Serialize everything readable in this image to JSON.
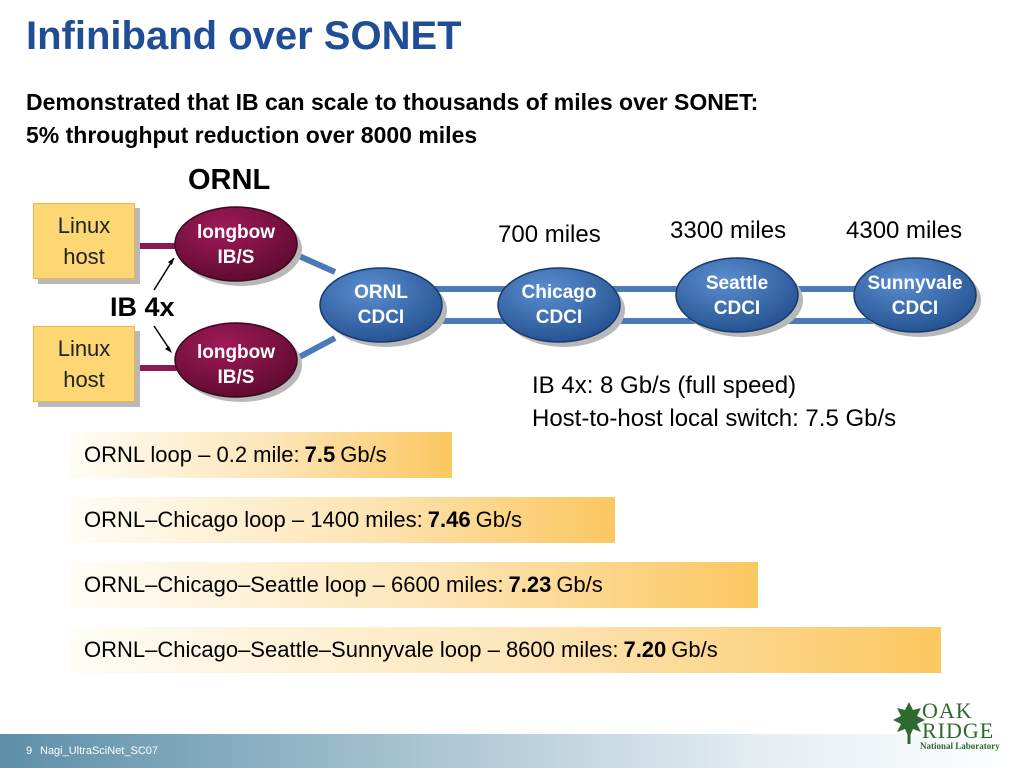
{
  "slide": {
    "title": "Infiniband over SONET",
    "subtitle_line1": "Demonstrated that IB can scale to thousands of miles over SONET:",
    "subtitle_line2": "5% throughput reduction over 8000 miles"
  },
  "diagram": {
    "ornl_label": "ORNL",
    "ib4x_label": "IB 4x",
    "linux_host_top": {
      "line1": "Linux",
      "line2": "host"
    },
    "linux_host_bottom": {
      "line1": "Linux",
      "line2": "host"
    },
    "longbow_top": {
      "line1": "longbow",
      "line2": "IB/S"
    },
    "longbow_bottom": {
      "line1": "longbow",
      "line2": "IB/S"
    },
    "ornl_cdci": {
      "line1": "ORNL",
      "line2": "CDCI"
    },
    "chicago_cdci": {
      "line1": "Chicago",
      "line2": "CDCI"
    },
    "seattle_cdci": {
      "line1": "Seattle",
      "line2": "CDCI"
    },
    "sunnyvale_cdci": {
      "line1": "Sunnyvale",
      "line2": "CDCI"
    },
    "miles_chicago": "700 miles",
    "miles_seattle": "3300 miles",
    "miles_sunnyvale": "4300 miles",
    "info_line1": "IB 4x: 8 Gb/s (full speed)",
    "info_line2": "Host-to-host local switch: 7.5 Gb/s"
  },
  "loops": [
    {
      "prefix": "ORNL loop – 0.2 mile:",
      "value": "7.5",
      "unit": "Gb/s"
    },
    {
      "prefix": "ORNL–Chicago loop – 1400 miles:",
      "value": "7.46",
      "unit": "Gb/s"
    },
    {
      "prefix": "ORNL–Chicago–Seattle loop – 6600 miles:",
      "value": "7.23",
      "unit": "Gb/s"
    },
    {
      "prefix": "ORNL–Chicago–Seattle–Sunnyvale loop – 8600 miles:",
      "value": "7.20",
      "unit": "Gb/s"
    }
  ],
  "footer": {
    "page": "9",
    "name": "Nagi_UltraSciNet_SC07"
  },
  "logo": {
    "line1": "OAK",
    "line2": "RIDGE",
    "line3": "National Laboratory",
    "icon": "leaf-icon"
  },
  "colors": {
    "title": "#1f4e96",
    "cdci_node": "#2f5fa6",
    "longbow_node": "#7a0f3e",
    "linux_box": "#fdd774",
    "link": "#4a7ab8",
    "loop_gradient_end": "#fbc760"
  }
}
